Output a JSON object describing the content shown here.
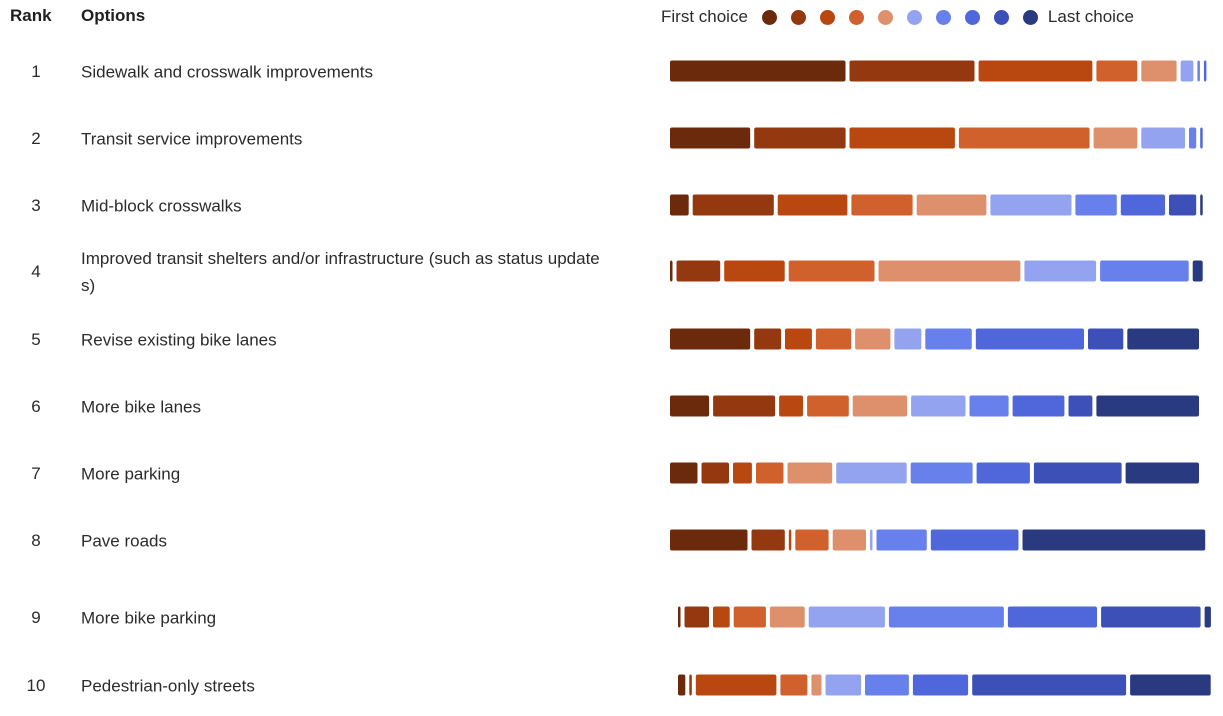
{
  "header": {
    "rank": "Rank",
    "options": "Options"
  },
  "legend": {
    "first": "First choice",
    "last": "Last choice",
    "colors": [
      "#6b2a0b",
      "#94380f",
      "#b84710",
      "#d0602c",
      "#de906c",
      "#94a3ef",
      "#6780eb",
      "#4f67db",
      "#3d50b8",
      "#2a3a80"
    ]
  },
  "chart_data": {
    "type": "bar",
    "stacked": true,
    "orientation": "horizontal",
    "categories": [
      "Sidewalk and crosswalk improvements",
      "Transit service improvements",
      "Mid-block crosswalks",
      "Improved transit shelters and/or infrastructure (such as status updates)",
      "Revise existing bike lanes",
      "More bike lanes",
      "More parking",
      "Pave roads",
      "More bike parking",
      "Pedestrian-only streets"
    ],
    "ranks": [
      "1",
      "2",
      "3",
      "4",
      "5",
      "6",
      "7",
      "8",
      "9",
      "10"
    ],
    "series": [
      {
        "values": [
          32,
          15,
          4,
          0.5,
          15,
          8.5,
          5.5,
          12,
          0.5,
          2
        ]
      },
      {
        "values": [
          23,
          17,
          15,
          8.5,
          5.5,
          13,
          5.5,
          5.5,
          5.5,
          0.5
        ]
      },
      {
        "values": [
          21,
          19.5,
          13,
          11.5,
          5.5,
          5.5,
          4,
          0.5,
          4,
          15
        ]
      },
      {
        "values": [
          8,
          24,
          11.5,
          16,
          7,
          9,
          5.5,
          5.5,
          7,
          5.5
        ]
      },
      {
        "values": [
          7,
          8.5,
          13,
          26,
          7,
          11.5,
          8.5,
          5.5,
          7.5,
          2.5
        ]
      },
      {
        "values": [
          3,
          8.5,
          15,
          13.5,
          5.5,
          11.5,
          13,
          0.5,
          15.5,
          7
        ]
      },
      {
        "values": [
          0.5,
          2,
          8,
          16.5,
          9,
          8.5,
          11.5,
          8,
          23,
          8.5
        ]
      },
      {
        "values": [
          0.5,
          0.5,
          8.5,
          0,
          20,
          11,
          10,
          13.5,
          18,
          10.5
        ]
      },
      {
        "values": [
          0,
          0,
          5.5,
          0,
          7,
          5.5,
          16,
          0,
          20,
          28
        ]
      },
      {
        "values": [
          0,
          0,
          0.5,
          2.5,
          13.5,
          21,
          13.5,
          27.5,
          2,
          15
        ]
      }
    ]
  }
}
